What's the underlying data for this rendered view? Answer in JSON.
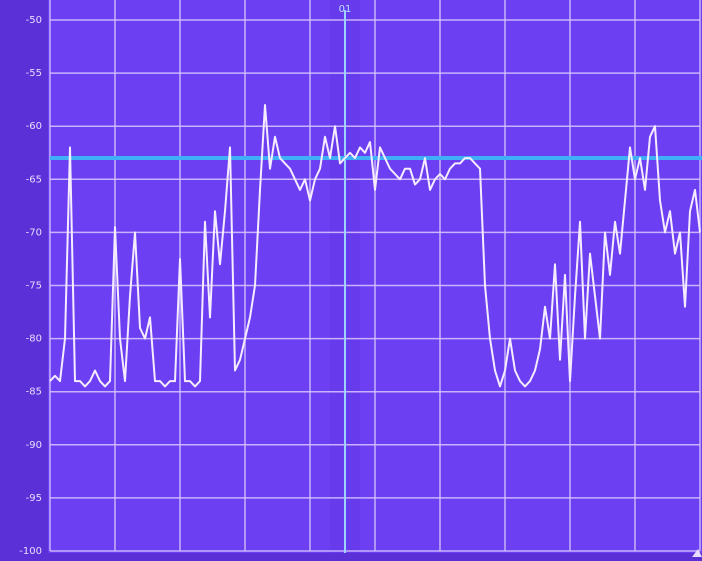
{
  "chart_data": {
    "type": "line",
    "marker_label": "01",
    "ylim": [
      -100,
      -50
    ],
    "yticks": [
      -50,
      -55,
      -60,
      -65,
      -70,
      -75,
      -80,
      -85,
      -90,
      -95,
      -100
    ],
    "grid": true,
    "threshold": -63,
    "threshold_color": "#3fb0f8",
    "series": [
      {
        "color": "#f6ecff",
        "values": [
          -84,
          -83.5,
          -84,
          -80,
          -62,
          -84,
          -84,
          -84.5,
          -84,
          -83,
          -84,
          -84.5,
          -84,
          -69.5,
          -80,
          -84,
          -76,
          -70,
          -79,
          -80,
          -78,
          -84,
          -84,
          -84.5,
          -84,
          -84,
          -72.5,
          -84,
          -84,
          -84.5,
          -84,
          -69,
          -78,
          -68,
          -73,
          -68,
          -62,
          -83,
          -82,
          -80,
          -78,
          -75,
          -66,
          -58,
          -64,
          -61,
          -63,
          -63.5,
          -64,
          -65,
          -66,
          -65,
          -67,
          -65,
          -64,
          -61,
          -63,
          -60,
          -63.5,
          -63,
          -62.5,
          -63,
          -62,
          -62.5,
          -61.5,
          -66,
          -62,
          -63,
          -64,
          -64.5,
          -65,
          -64,
          -64,
          -65.5,
          -65,
          -63,
          -66,
          -65,
          -64.5,
          -65,
          -64,
          -63.5,
          -63.5,
          -63,
          -63,
          -63.5,
          -64,
          -75,
          -80,
          -83,
          -84.5,
          -83,
          -80,
          -83,
          -84,
          -84.5,
          -84,
          -83,
          -81,
          -77,
          -80,
          -73,
          -82,
          -74,
          -84,
          -76,
          -69,
          -80,
          -72,
          -76,
          -80,
          -70,
          -74,
          -69,
          -72,
          -67,
          -62,
          -65,
          -63,
          -66,
          -61,
          -60,
          -67,
          -70,
          -68,
          -72,
          -70,
          -77,
          -68,
          -66,
          -70
        ]
      }
    ]
  }
}
